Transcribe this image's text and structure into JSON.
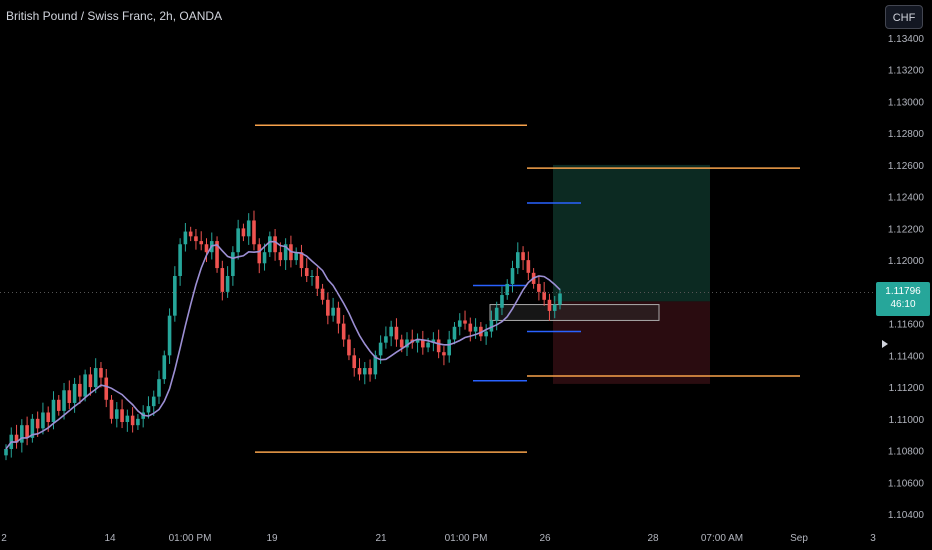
{
  "header": {
    "title": "British Pound / Swiss Franc, 2h, OANDA",
    "currency_button": "CHF"
  },
  "price_tag": {
    "price": "1.11796",
    "countdown": "46:10"
  },
  "colors": {
    "up": "#26a69a",
    "down": "#ef5350",
    "ma": "#9c8fd4",
    "target_line": "#f7a24b",
    "blue_line": "#2962ff",
    "profit_zone": "#0c2a22",
    "loss_zone": "#2a0c10"
  },
  "chart_data": {
    "type": "candlestick",
    "y_ticks": [
      "1.13400",
      "1.13200",
      "1.13000",
      "1.12800",
      "1.12600",
      "1.12400",
      "1.12200",
      "1.12000",
      "1.11800",
      "1.11600",
      "1.11400",
      "1.11200",
      "1.11000",
      "1.10800",
      "1.10600",
      "1.10400"
    ],
    "x_ticks": [
      "2",
      "14",
      "01:00 PM",
      "19",
      "21",
      "01:00 PM",
      "26",
      "28",
      "07:00 AM",
      "Sep",
      "3"
    ],
    "ylim": [
      1.1035,
      1.1345
    ],
    "current_price": 1.11796,
    "horizontal_levels": [
      {
        "price": 1.1285,
        "color": "target_line"
      },
      {
        "price": 1.1079,
        "color": "target_line"
      },
      {
        "price": 1.1258,
        "color": "target_line"
      },
      {
        "price": 1.1127,
        "color": "target_line"
      },
      {
        "price": 1.1236,
        "color": "blue_line"
      },
      {
        "price": 1.1184,
        "color": "blue_line"
      },
      {
        "price": 1.1155,
        "color": "blue_line"
      },
      {
        "price": 1.1124,
        "color": "blue_line"
      }
    ],
    "position": {
      "entry": 1.1174,
      "target": 1.126,
      "stop": 1.1122,
      "box": {
        "top": 1.1172,
        "bottom": 1.1162
      }
    },
    "candles_approx_close": [
      1.1081,
      1.109,
      1.1085,
      1.1096,
      1.1088,
      1.11,
      1.1094,
      1.1104,
      1.1098,
      1.1112,
      1.1105,
      1.1118,
      1.111,
      1.1122,
      1.1114,
      1.1128,
      1.112,
      1.1132,
      1.1126,
      1.1112,
      1.11,
      1.1106,
      1.1098,
      1.1102,
      1.1096,
      1.11,
      1.1104,
      1.1108,
      1.1114,
      1.1125,
      1.114,
      1.1165,
      1.119,
      1.121,
      1.1218,
      1.1215,
      1.1212,
      1.121,
      1.1205,
      1.1212,
      1.1195,
      1.118,
      1.119,
      1.1205,
      1.122,
      1.1215,
      1.1225,
      1.121,
      1.1198,
      1.1205,
      1.1215,
      1.1205,
      1.12,
      1.121,
      1.12,
      1.1205,
      1.1195,
      1.119,
      1.119,
      1.1182,
      1.1175,
      1.1165,
      1.117,
      1.116,
      1.115,
      1.114,
      1.1132,
      1.1128,
      1.1132,
      1.1128,
      1.114,
      1.1148,
      1.1152,
      1.1158,
      1.115,
      1.1145,
      1.115,
      1.1148,
      1.115,
      1.1145,
      1.1148,
      1.115,
      1.1142,
      1.114,
      1.115,
      1.1158,
      1.1162,
      1.116,
      1.1155,
      1.1158,
      1.1152,
      1.1155,
      1.1162,
      1.117,
      1.1178,
      1.1185,
      1.1195,
      1.1205,
      1.12,
      1.1192,
      1.1185,
      1.118,
      1.1175,
      1.1168,
      1.1172,
      1.1179
    ]
  }
}
